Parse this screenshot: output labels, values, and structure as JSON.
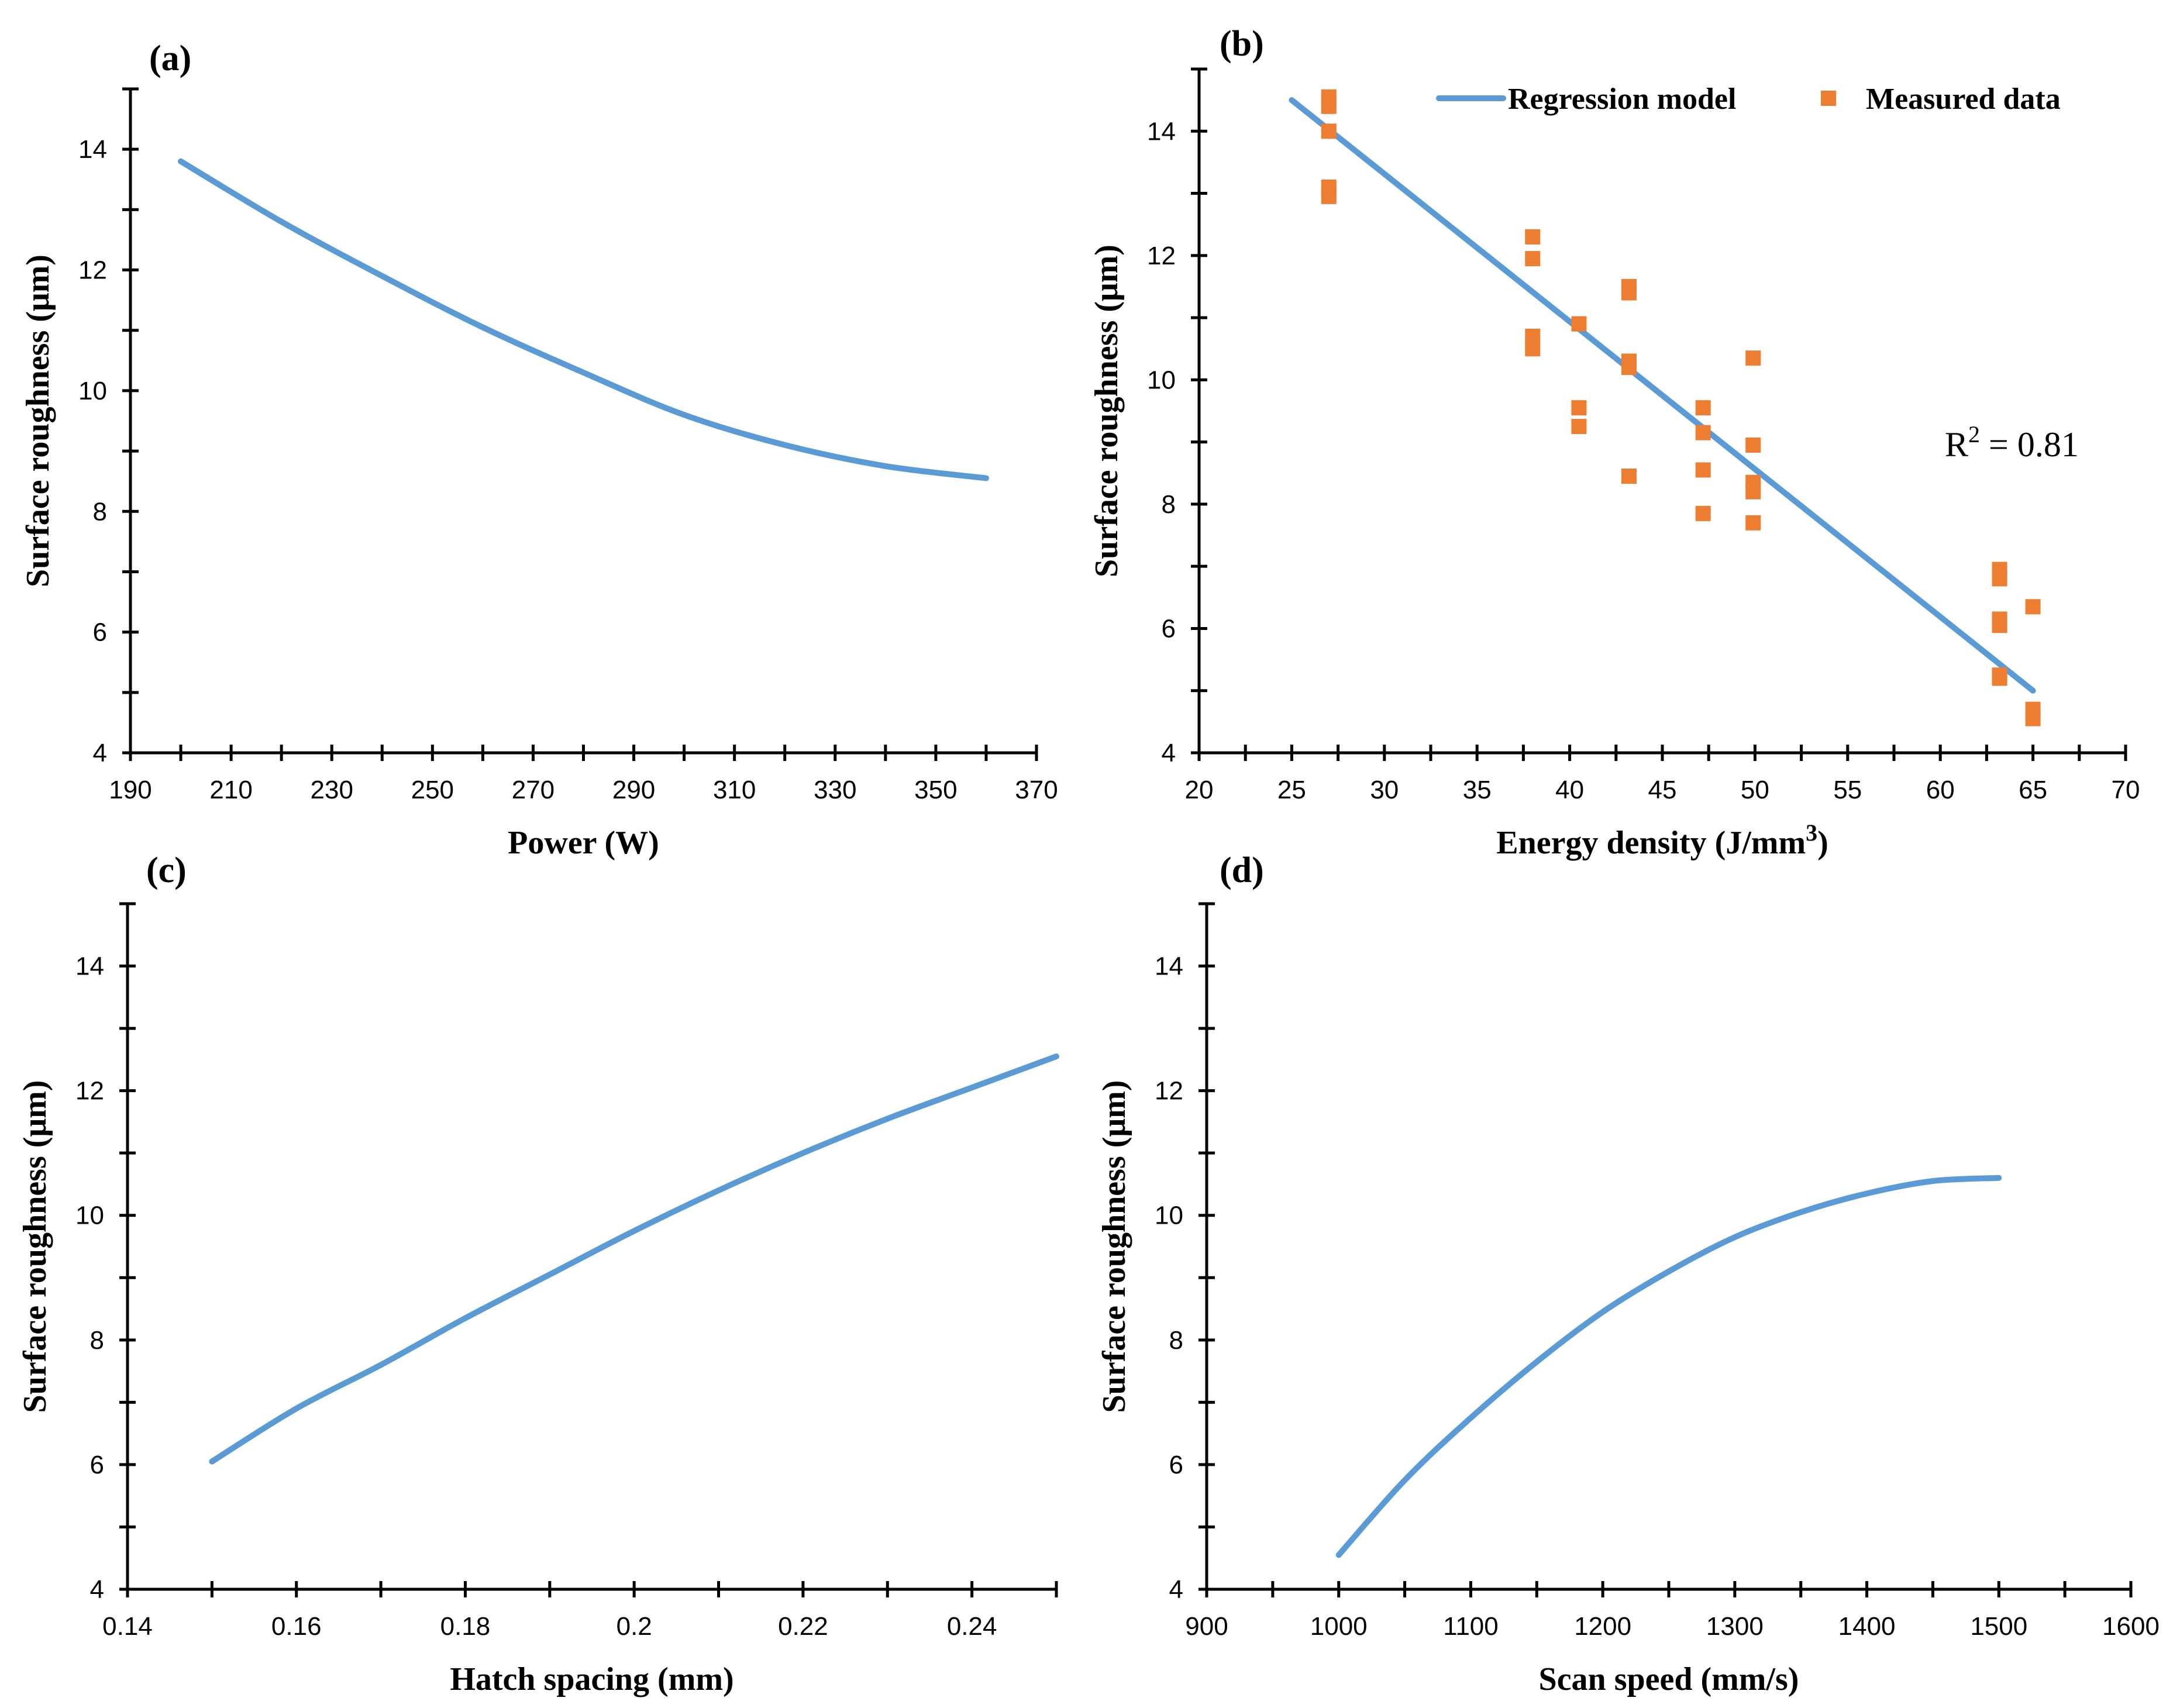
{
  "chart_data": [
    {
      "panel": "(a)",
      "type": "line",
      "xlabel": "Power (W)",
      "ylabel": "Surface roughness (μm)",
      "xlim": [
        190,
        370
      ],
      "ylim": [
        4,
        15
      ],
      "xticks": [
        190,
        210,
        230,
        250,
        270,
        290,
        310,
        330,
        350,
        370
      ],
      "yticks": [
        4,
        6,
        8,
        10,
        12,
        14
      ],
      "series": [
        {
          "name": "Surface roughness",
          "x": [
            200,
            220,
            240,
            260,
            280,
            300,
            320,
            340,
            360
          ],
          "y": [
            13.8,
            12.8,
            11.9,
            11.05,
            10.3,
            9.6,
            9.1,
            8.75,
            8.55
          ]
        }
      ]
    },
    {
      "panel": "(b)",
      "type": "scatter",
      "xlabel": "Energy density (J/mm",
      "xlabel_sup": "3",
      "xlabel_close": ")",
      "ylabel": "Surface roughness (μm)",
      "xlim": [
        20,
        70
      ],
      "ylim": [
        4,
        15
      ],
      "xticks": [
        20,
        25,
        30,
        35,
        40,
        45,
        50,
        55,
        60,
        65,
        70
      ],
      "yticks": [
        4,
        6,
        8,
        10,
        12,
        14
      ],
      "legend": {
        "position": "top-right",
        "line_label": "Regression model",
        "marker_label": "Measured data"
      },
      "annotation": {
        "prefix": "R",
        "sup": "2",
        "suffix": " = 0.81"
      },
      "series": [
        {
          "name": "Regression model",
          "kind": "line",
          "x": [
            25,
            65
          ],
          "y": [
            14.5,
            5.0
          ]
        },
        {
          "name": "Measured data",
          "kind": "scatter",
          "x": [
            27,
            27,
            27,
            27,
            27,
            38,
            38,
            38,
            38,
            40.5,
            40.5,
            40.5,
            43.2,
            43.2,
            43.2,
            43.2,
            43.2,
            47.2,
            47.2,
            47.2,
            47.2,
            49.9,
            49.9,
            49.9,
            49.9,
            49.9,
            63.2,
            63.2,
            63.2,
            63.2,
            63.2,
            63.2,
            65,
            65,
            65
          ],
          "y": [
            14.55,
            14.4,
            14.0,
            13.1,
            12.95,
            12.3,
            11.95,
            10.7,
            10.5,
            10.9,
            9.55,
            9.25,
            11.5,
            11.4,
            10.3,
            10.2,
            8.45,
            9.55,
            9.15,
            8.55,
            7.85,
            10.35,
            8.95,
            8.35,
            8.2,
            7.7,
            6.95,
            6.8,
            6.15,
            6.05,
            5.25,
            5.2,
            6.35,
            4.7,
            4.55
          ]
        }
      ]
    },
    {
      "panel": "(c)",
      "type": "line",
      "xlabel": "Hatch spacing (mm)",
      "ylabel": "Surface roughness (μm)",
      "xlim": [
        0.14,
        0.25
      ],
      "ylim": [
        4,
        15
      ],
      "xticks": [
        0.14,
        0.16,
        0.18,
        0.2,
        0.22,
        0.24
      ],
      "yticks": [
        4,
        6,
        8,
        10,
        12,
        14
      ],
      "series": [
        {
          "name": "Surface roughness",
          "x": [
            0.15,
            0.16,
            0.17,
            0.18,
            0.19,
            0.2,
            0.21,
            0.22,
            0.23,
            0.24,
            0.25
          ],
          "y": [
            6.05,
            6.9,
            7.6,
            8.35,
            9.05,
            9.75,
            10.4,
            11.0,
            11.55,
            12.05,
            12.55
          ]
        }
      ]
    },
    {
      "panel": "(d)",
      "type": "line",
      "xlabel": "Scan speed (mm/s)",
      "ylabel": "Surface roughness (μm)",
      "xlim": [
        900,
        1600
      ],
      "ylim": [
        4,
        15
      ],
      "xticks": [
        900,
        1000,
        1100,
        1200,
        1300,
        1400,
        1500,
        1600
      ],
      "yticks": [
        4,
        6,
        8,
        10,
        12,
        14
      ],
      "series": [
        {
          "name": "Surface roughness",
          "x": [
            1000,
            1050,
            1100,
            1150,
            1200,
            1250,
            1300,
            1350,
            1400,
            1450,
            1500
          ],
          "y": [
            4.55,
            5.75,
            6.75,
            7.65,
            8.45,
            9.1,
            9.65,
            10.05,
            10.35,
            10.55,
            10.6
          ]
        }
      ]
    }
  ]
}
